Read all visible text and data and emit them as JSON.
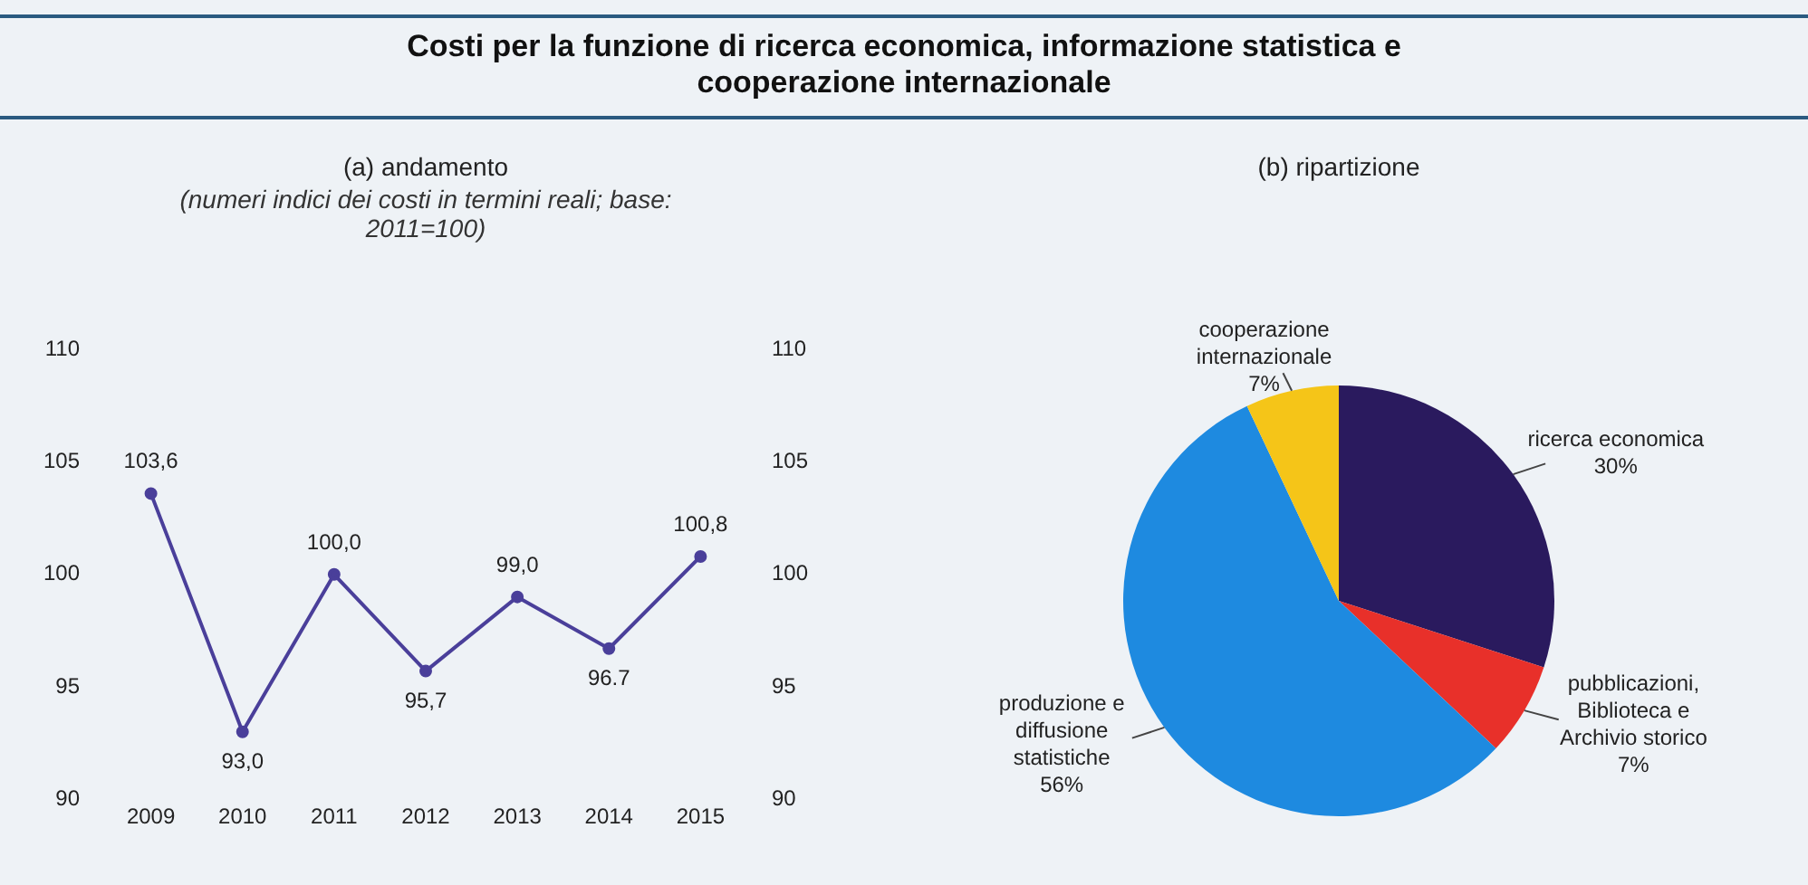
{
  "chart_data": [
    {
      "type": "line",
      "title": "Costi per la funzione di ricerca economica, informazione statistica e cooperazione internazionale",
      "subtitle": "(a) andamento",
      "annotations": [
        "(numeri indici dei costi in termini reali; base: 2011=100)"
      ],
      "categories": [
        "2009",
        "2010",
        "2011",
        "2012",
        "2013",
        "2014",
        "2015"
      ],
      "series": [
        {
          "color": "#4a3f9a",
          "values": [
            103.6,
            93.0,
            100.0,
            95.7,
            99.0,
            96.7,
            100.8
          ],
          "value_labels": [
            "103,6",
            "93,0",
            "100,0",
            "95,7",
            "99,0",
            "96.7",
            "100,8"
          ]
        }
      ],
      "ylim": [
        90,
        110
      ],
      "yticks": [
        90,
        95,
        100,
        105,
        110
      ],
      "y2lim": [
        90,
        110
      ],
      "y2ticks": [
        90,
        95,
        100,
        105,
        110
      ],
      "grid": false,
      "legend": false,
      "marker": "circle",
      "line_style": "solid"
    },
    {
      "type": "pie",
      "subtitle": "(b) ripartizione",
      "categories": [
        "ricerca economica",
        "pubblicazioni, Biblioteca e Archivio storico",
        "produzione e diffusione statistiche",
        "cooperazione internazionale"
      ],
      "values": [
        30,
        7,
        56,
        7
      ],
      "value_labels": [
        "30%",
        "7%",
        "56%",
        "7%"
      ],
      "colors": [
        "#2a1a5e",
        "#e8302a",
        "#1e8ae0",
        "#f5c518"
      ],
      "legend": false
    }
  ]
}
